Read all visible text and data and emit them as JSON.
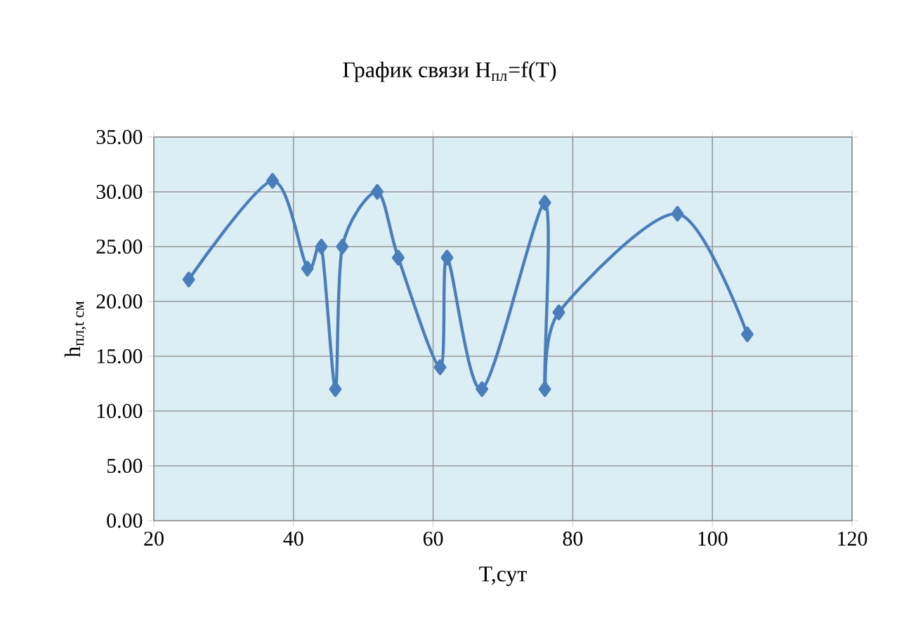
{
  "chart_data": {
    "type": "line",
    "title": "График связи H$_{пл}$=f(T)",
    "xlabel": "T,сут",
    "ylabel": "\\text{h}_{\\text{пл,t см}}",
    "series": [
      {
        "color": "#4a7ebb",
        "x": [
          25,
          37,
          42,
          44,
          46,
          47,
          52,
          55,
          61,
          62,
          67,
          76,
          76,
          78,
          95,
          105
        ],
        "values": [
          22,
          31,
          23,
          25,
          12,
          25,
          30,
          24,
          14,
          24,
          12,
          29,
          12,
          19,
          28,
          17
        ]
      }
    ],
    "xlim": [
      20,
      120
    ],
    "xticks": [
      20,
      40,
      60,
      80,
      100,
      120
    ],
    "ylim": [
      0,
      35
    ],
    "yticks": [
      {
        "value": 0,
        "label": "0.00"
      },
      {
        "value": 5,
        "label": "5.00"
      },
      {
        "value": 10,
        "label": "10.00"
      },
      {
        "value": 15,
        "label": "15.00"
      },
      {
        "value": 20,
        "label": "20.00"
      },
      {
        "value": 25,
        "label": "25.00"
      },
      {
        "value": 30,
        "label": "30.00"
      },
      {
        "value": 35,
        "label": "35.00"
      }
    ],
    "grid": true,
    "marker": "diamond",
    "line_style": "solid"
  }
}
